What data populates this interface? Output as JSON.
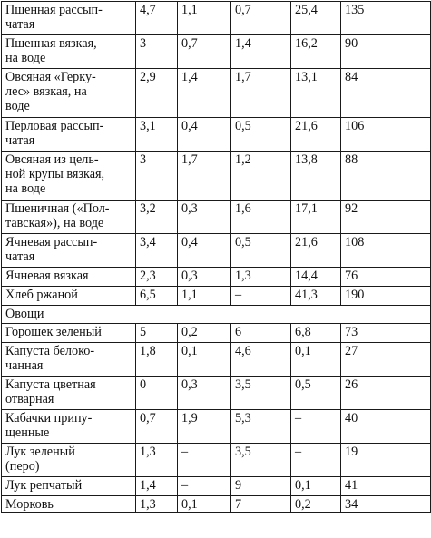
{
  "rows": [
    {
      "type": "food",
      "lines": [
        "Пшенная рассып-",
        "чатая"
      ],
      "protein": "4,7",
      "fat": "1,1",
      "fiber": "0,7",
      "carbs": "25,4",
      "kcal": "135"
    },
    {
      "type": "food",
      "lines": [
        "Пшенная вязкая,",
        "на воде"
      ],
      "protein": "3",
      "fat": "0,7",
      "fiber": "1,4",
      "carbs": "16,2",
      "kcal": "90"
    },
    {
      "type": "food",
      "lines": [
        "Овсяная «Герку-",
        "лес» вязкая, на",
        "воде"
      ],
      "protein": "2,9",
      "fat": "1,4",
      "fiber": "1,7",
      "carbs": "13,1",
      "kcal": "84"
    },
    {
      "type": "food",
      "lines": [
        "Перловая рассып-",
        "чатая"
      ],
      "protein": "3,1",
      "fat": "0,4",
      "fiber": "0,5",
      "carbs": "21,6",
      "kcal": "106"
    },
    {
      "type": "food",
      "lines": [
        "Овсяная из цель-",
        "ной крупы вязкая,",
        "на воде"
      ],
      "protein": "3",
      "fat": "1,7",
      "fiber": "1,2",
      "carbs": "13,8",
      "kcal": "88"
    },
    {
      "type": "food",
      "lines": [
        "Пшеничная («Пол-",
        "тавская»), на воде"
      ],
      "protein": "3,2",
      "fat": "0,3",
      "fiber": "1,6",
      "carbs": "17,1",
      "kcal": "92"
    },
    {
      "type": "food",
      "lines": [
        "Ячневая рассып-",
        "чатая"
      ],
      "protein": "3,4",
      "fat": "0,4",
      "fiber": "0,5",
      "carbs": "21,6",
      "kcal": "108"
    },
    {
      "type": "food",
      "lines": [
        "Ячневая вязкая"
      ],
      "protein": "2,3",
      "fat": "0,3",
      "fiber": "1,3",
      "carbs": "14,4",
      "kcal": "76"
    },
    {
      "type": "food",
      "lines": [
        "Хлеб ржаной"
      ],
      "protein": "6,5",
      "fat": "1,1",
      "fiber": "–",
      "carbs": "41,3",
      "kcal": "190"
    },
    {
      "type": "section",
      "lines": [
        "Овощи"
      ]
    },
    {
      "type": "food",
      "lines": [
        "Горошек зеленый"
      ],
      "protein": "5",
      "fat": "0,2",
      "fiber": "6",
      "carbs": "6,8",
      "kcal": "73"
    },
    {
      "type": "food",
      "lines": [
        "Капуста белоко-",
        "чанная"
      ],
      "protein": "1,8",
      "fat": "0,1",
      "fiber": "4,6",
      "carbs": "0,1",
      "kcal": "27"
    },
    {
      "type": "food",
      "lines": [
        "Капуста цветная",
        "отварная"
      ],
      "protein": "0",
      "fat": "0,3",
      "fiber": "3,5",
      "carbs": "0,5",
      "kcal": "26"
    },
    {
      "type": "food",
      "lines": [
        "Кабачки припу-",
        "щенные"
      ],
      "protein": "0,7",
      "fat": "1,9",
      "fiber": "5,3",
      "carbs": "–",
      "kcal": "40"
    },
    {
      "type": "food",
      "lines": [
        "Лук зеленый",
        "(перо)"
      ],
      "protein": "1,3",
      "fat": "–",
      "fiber": "3,5",
      "carbs": "–",
      "kcal": "19"
    },
    {
      "type": "food",
      "lines": [
        "Лук репчатый"
      ],
      "protein": "1,4",
      "fat": "–",
      "fiber": "9",
      "carbs": "0,1",
      "kcal": "41"
    },
    {
      "type": "food",
      "lines": [
        "Морковь"
      ],
      "protein": "1,3",
      "fat": "0,1",
      "fiber": "7",
      "carbs": "0,2",
      "kcal": "34"
    }
  ]
}
